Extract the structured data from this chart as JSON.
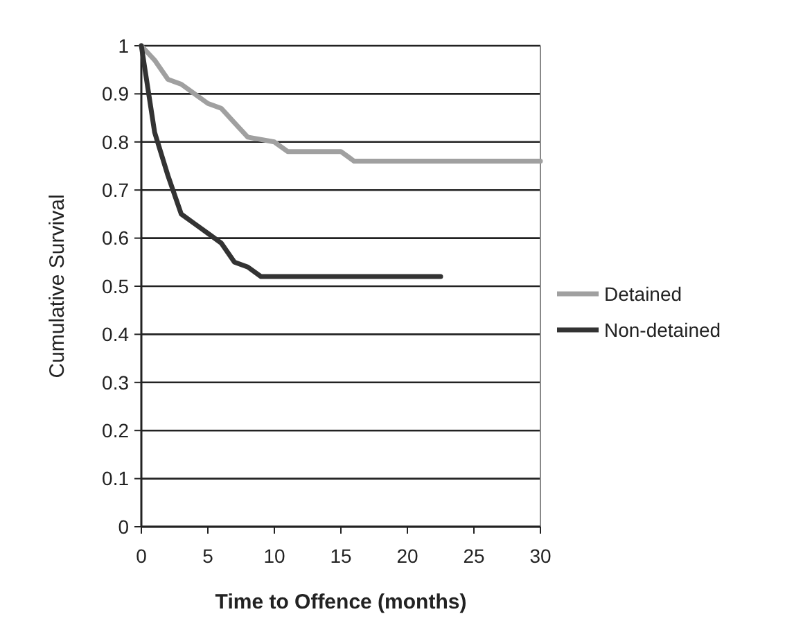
{
  "chart_data": {
    "type": "line",
    "xlabel": "Time to Offence (months)",
    "ylabel": "Cumulative Survival",
    "xlim": [
      0,
      30
    ],
    "ylim": [
      0,
      1
    ],
    "xticks": [
      0,
      5,
      10,
      15,
      20,
      25,
      30
    ],
    "yticks": [
      0,
      0.1,
      0.2,
      0.3,
      0.4,
      0.5,
      0.6,
      0.7,
      0.8,
      0.9,
      1
    ],
    "grid": "y",
    "legend": "right",
    "marker": "none",
    "line_style": "solid",
    "series": [
      {
        "name": "Detained",
        "color": "#a0a0a0",
        "x": [
          0,
          1,
          2,
          3,
          4,
          5,
          6,
          7,
          8,
          10,
          11,
          15,
          16,
          30
        ],
        "values": [
          1,
          0.97,
          0.93,
          0.92,
          0.9,
          0.88,
          0.87,
          0.84,
          0.81,
          0.8,
          0.78,
          0.78,
          0.76,
          0.76
        ]
      },
      {
        "name": "Non-detained",
        "color": "#333333",
        "x": [
          0,
          1,
          2,
          3,
          4,
          5,
          6,
          7,
          8,
          9,
          22.5
        ],
        "values": [
          1,
          0.82,
          0.73,
          0.65,
          0.63,
          0.61,
          0.59,
          0.55,
          0.54,
          0.52,
          0.52
        ]
      }
    ]
  }
}
